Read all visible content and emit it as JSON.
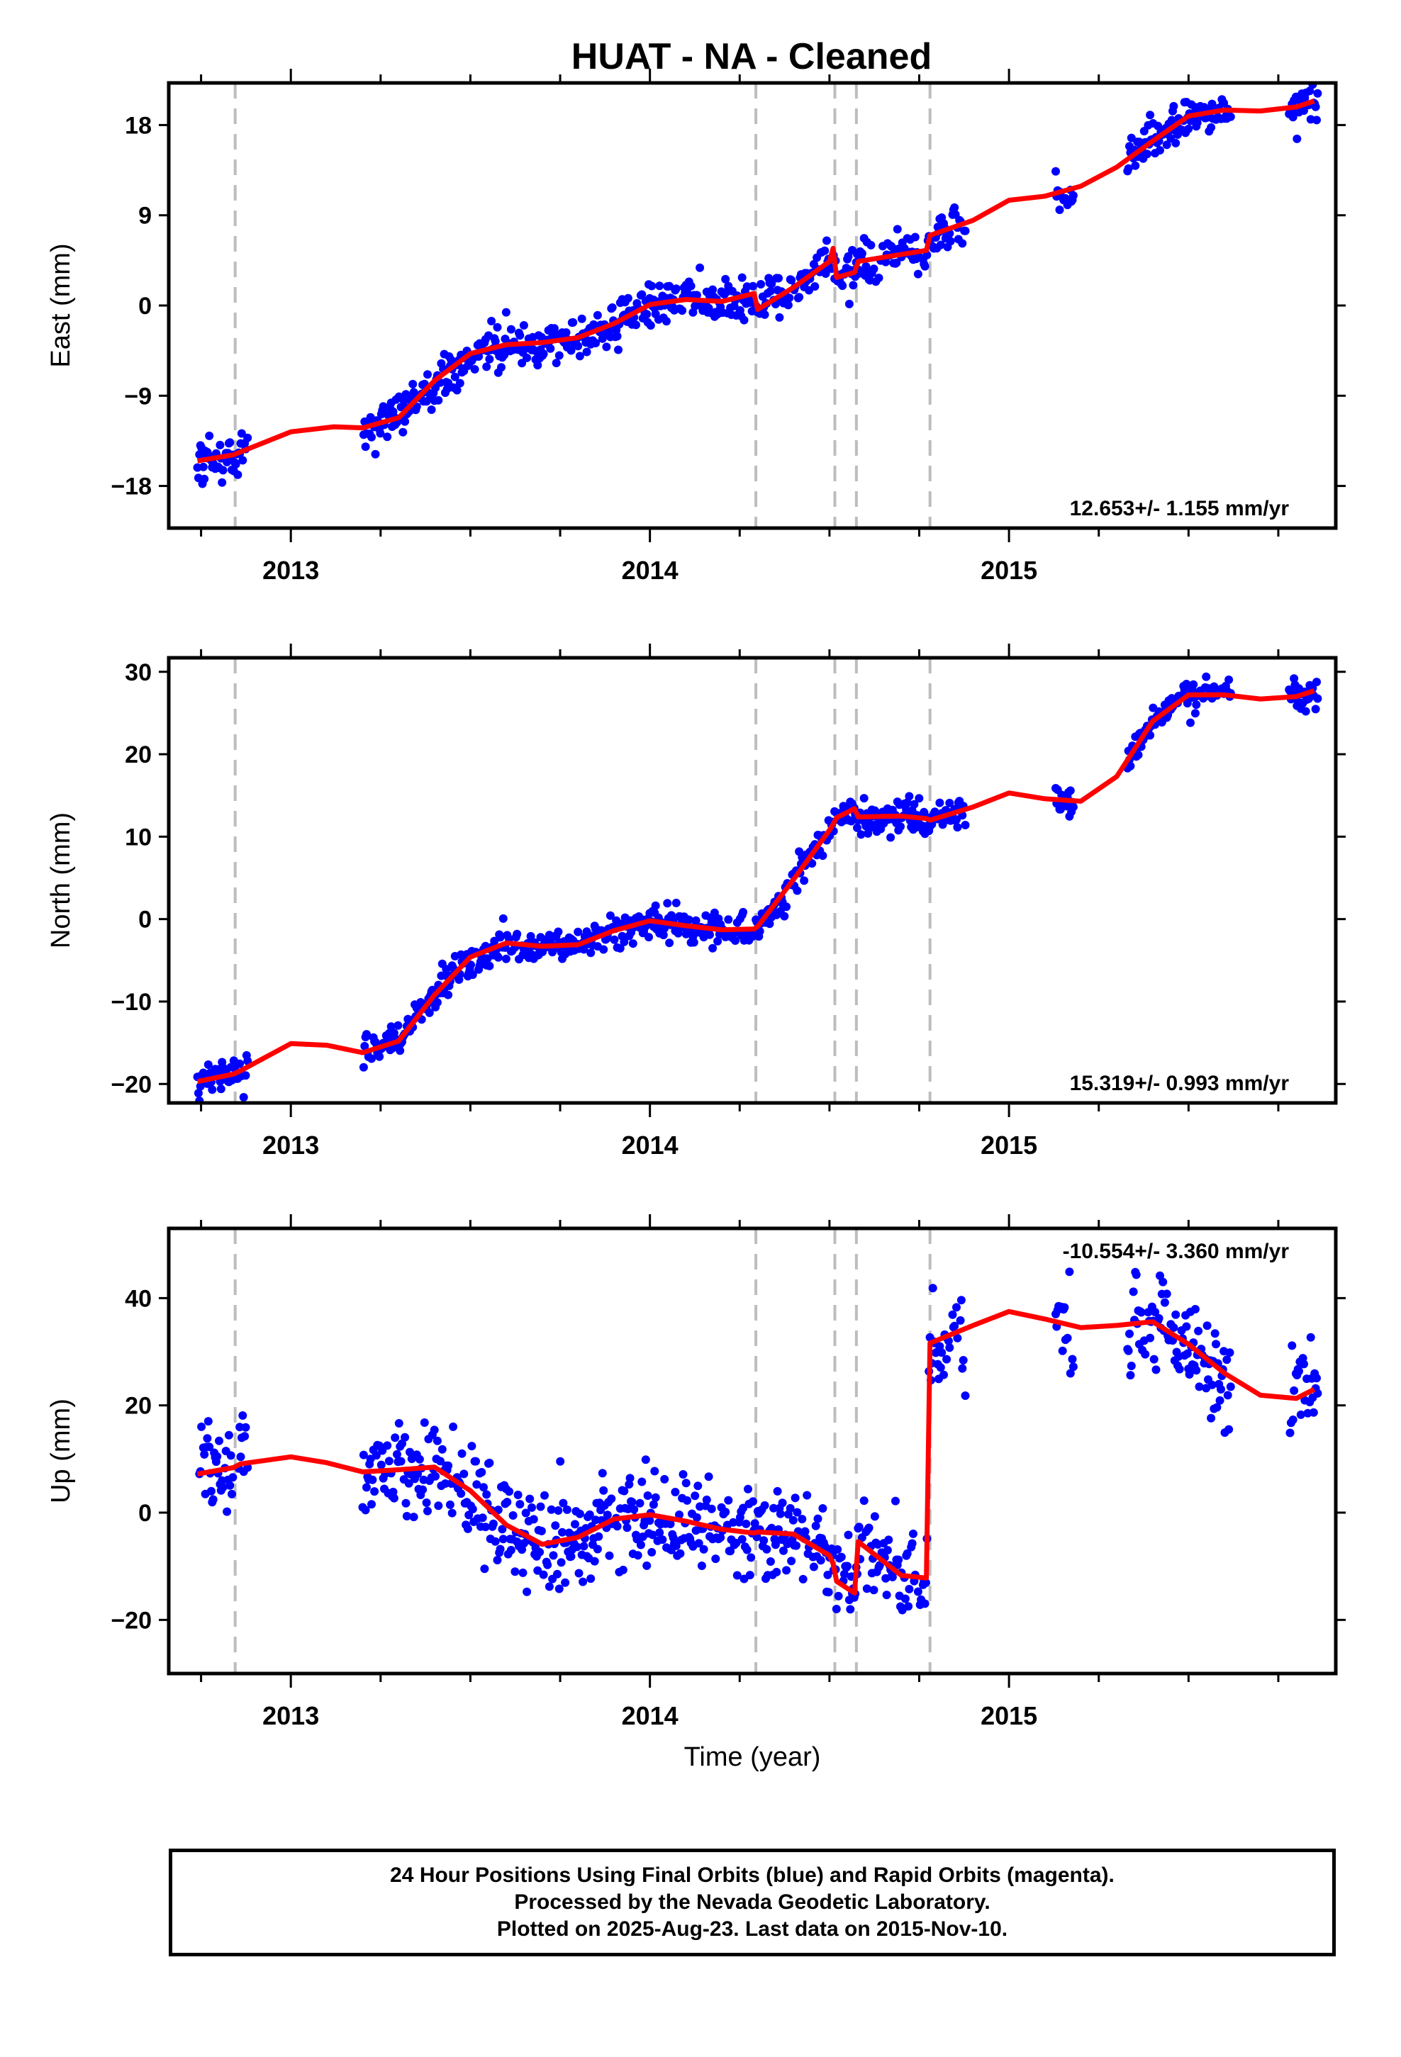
{
  "title": "HUAT  - NA - Cleaned",
  "chart_data": [
    {
      "type": "scatter",
      "ylabel": "East (mm)",
      "xlabel": "",
      "xlim": [
        2012.66,
        2015.91
      ],
      "ylim": [
        -22.2,
        22.2
      ],
      "yticks": [
        -18,
        -9,
        0,
        9,
        18
      ],
      "ytick_labels": [
        "−18",
        "−9",
        "0",
        "9",
        "18"
      ],
      "xticks": [
        2013,
        2014,
        2015
      ],
      "rate_label": "12.653+/- 1.155 mm/yr",
      "rate_position": "bottom-right",
      "fit_model": [
        [
          2012.74,
          -15.5
        ],
        [
          2012.84,
          -14.9
        ],
        [
          2012.86,
          -14.6
        ],
        [
          2013.0,
          -12.6
        ],
        [
          2013.12,
          -12.1
        ],
        [
          2013.2,
          -12.2
        ],
        [
          2013.3,
          -11.2
        ],
        [
          2013.4,
          -7.5
        ],
        [
          2013.5,
          -4.8
        ],
        [
          2013.6,
          -3.9
        ],
        [
          2013.7,
          -3.7
        ],
        [
          2013.8,
          -3.2
        ],
        [
          2013.9,
          -1.8
        ],
        [
          2014.0,
          0.1
        ],
        [
          2014.1,
          0.6
        ],
        [
          2014.2,
          0.4
        ],
        [
          2014.29,
          1.2
        ],
        [
          2014.3,
          -0.4
        ],
        [
          2014.4,
          1.8
        ],
        [
          2014.5,
          4.4
        ],
        [
          2014.51,
          5.7
        ],
        [
          2014.52,
          2.8
        ],
        [
          2014.57,
          3.3
        ],
        [
          2014.58,
          4.4
        ],
        [
          2014.7,
          5.1
        ],
        [
          2014.77,
          5.5
        ],
        [
          2014.78,
          7.0
        ],
        [
          2014.9,
          8.5
        ],
        [
          2015.0,
          10.5
        ],
        [
          2015.1,
          10.9
        ],
        [
          2015.2,
          11.9
        ],
        [
          2015.3,
          13.8
        ],
        [
          2015.4,
          16.4
        ],
        [
          2015.5,
          18.9
        ],
        [
          2015.6,
          19.5
        ],
        [
          2015.7,
          19.4
        ],
        [
          2015.8,
          19.8
        ],
        [
          2015.85,
          20.4
        ]
      ],
      "observation_windows": [
        [
          2012.74,
          2012.88
        ],
        [
          2013.2,
          2014.88
        ],
        [
          2015.13,
          2015.18
        ],
        [
          2015.33,
          2015.62
        ],
        [
          2015.78,
          2015.86
        ]
      ],
      "scatter_sd": 1.1
    },
    {
      "type": "scatter",
      "ylabel": "North (mm)",
      "xlabel": "",
      "xlim": [
        2012.66,
        2015.91
      ],
      "ylim": [
        -22.3,
        31.7
      ],
      "yticks": [
        -20,
        -10,
        0,
        10,
        20,
        30
      ],
      "ytick_labels": [
        "−20",
        "−10",
        "0",
        "10",
        "20",
        "30"
      ],
      "xticks": [
        2013,
        2014,
        2015
      ],
      "rate_label": "15.319+/- 0.993 mm/yr",
      "rate_position": "bottom-right",
      "fit_model": [
        [
          2012.74,
          -19.7
        ],
        [
          2012.84,
          -18.8
        ],
        [
          2012.86,
          -18.4
        ],
        [
          2013.0,
          -15.1
        ],
        [
          2013.1,
          -15.3
        ],
        [
          2013.2,
          -16.2
        ],
        [
          2013.3,
          -14.8
        ],
        [
          2013.4,
          -9.2
        ],
        [
          2013.5,
          -4.6
        ],
        [
          2013.6,
          -2.9
        ],
        [
          2013.7,
          -3.3
        ],
        [
          2013.8,
          -3.1
        ],
        [
          2013.9,
          -1.4
        ],
        [
          2014.0,
          -0.2
        ],
        [
          2014.1,
          -0.8
        ],
        [
          2014.2,
          -1.3
        ],
        [
          2014.29,
          -1.2
        ],
        [
          2014.3,
          -0.9
        ],
        [
          2014.4,
          4.8
        ],
        [
          2014.5,
          10.8
        ],
        [
          2014.51,
          11.5
        ],
        [
          2014.52,
          12.3
        ],
        [
          2014.57,
          13.4
        ],
        [
          2014.58,
          12.4
        ],
        [
          2014.7,
          12.5
        ],
        [
          2014.77,
          12.2
        ],
        [
          2014.78,
          12.0
        ],
        [
          2014.9,
          13.6
        ],
        [
          2015.0,
          15.3
        ],
        [
          2015.1,
          14.6
        ],
        [
          2015.2,
          14.3
        ],
        [
          2015.3,
          17.3
        ],
        [
          2015.4,
          24.0
        ],
        [
          2015.5,
          27.2
        ],
        [
          2015.6,
          27.2
        ],
        [
          2015.7,
          26.7
        ],
        [
          2015.8,
          27.0
        ],
        [
          2015.85,
          27.7
        ]
      ],
      "observation_windows": [
        [
          2012.74,
          2012.88
        ],
        [
          2013.2,
          2014.88
        ],
        [
          2015.13,
          2015.18
        ],
        [
          2015.33,
          2015.62
        ],
        [
          2015.78,
          2015.86
        ]
      ],
      "scatter_sd": 1.0
    },
    {
      "type": "scatter",
      "ylabel": "Up (mm)",
      "xlabel": "Time (year)",
      "xlim": [
        2012.66,
        2015.91
      ],
      "ylim": [
        -30,
        53
      ],
      "yticks": [
        -20,
        0,
        20,
        40
      ],
      "ytick_labels": [
        "−20",
        "0",
        "20",
        "40"
      ],
      "xticks": [
        2013,
        2014,
        2015
      ],
      "rate_label": "-10.554+/- 3.360 mm/yr",
      "rate_position": "top-right",
      "fit_model": [
        [
          2012.74,
          7.2
        ],
        [
          2012.84,
          8.4
        ],
        [
          2012.86,
          9.1
        ],
        [
          2013.0,
          10.4
        ],
        [
          2013.1,
          9.3
        ],
        [
          2013.2,
          7.6
        ],
        [
          2013.3,
          8.0
        ],
        [
          2013.4,
          8.5
        ],
        [
          2013.5,
          4.1
        ],
        [
          2013.6,
          -2.3
        ],
        [
          2013.7,
          -5.9
        ],
        [
          2013.8,
          -4.6
        ],
        [
          2013.9,
          -1.2
        ],
        [
          2014.0,
          -0.4
        ],
        [
          2014.1,
          -1.6
        ],
        [
          2014.2,
          -3.1
        ],
        [
          2014.29,
          -3.8
        ],
        [
          2014.3,
          -3.6
        ],
        [
          2014.4,
          -4.0
        ],
        [
          2014.5,
          -8.0
        ],
        [
          2014.51,
          -9.5
        ],
        [
          2014.52,
          -12.8
        ],
        [
          2014.57,
          -15.0
        ],
        [
          2014.58,
          -5.4
        ],
        [
          2014.7,
          -11.7
        ],
        [
          2014.77,
          -12.2
        ],
        [
          2014.78,
          31.6
        ],
        [
          2014.9,
          34.9
        ],
        [
          2015.0,
          37.5
        ],
        [
          2015.1,
          36.1
        ],
        [
          2015.2,
          34.5
        ],
        [
          2015.3,
          34.9
        ],
        [
          2015.4,
          35.6
        ],
        [
          2015.5,
          31.4
        ],
        [
          2015.6,
          26.0
        ],
        [
          2015.7,
          21.9
        ],
        [
          2015.8,
          21.3
        ],
        [
          2015.85,
          23.0
        ]
      ],
      "observation_windows": [
        [
          2012.74,
          2012.88
        ],
        [
          2013.2,
          2014.88
        ],
        [
          2015.13,
          2015.18
        ],
        [
          2015.33,
          2015.62
        ],
        [
          2015.78,
          2015.86
        ]
      ],
      "scatter_sd": 4.5
    }
  ],
  "event_lines_year": [
    2012.845,
    2014.295,
    2014.515,
    2014.575,
    2014.78
  ],
  "colors": {
    "observations": "#0000ff",
    "model": "#ff0000",
    "events": "#bdbdbd",
    "frame": "#000000"
  },
  "footer": {
    "line1": "24 Hour Positions Using Final Orbits (blue) and Rapid Orbits (magenta).",
    "line2": "Processed by the Nevada Geodetic Laboratory.",
    "line3": "Plotted on 2025-Aug-23. Last data on 2015-Nov-10."
  }
}
